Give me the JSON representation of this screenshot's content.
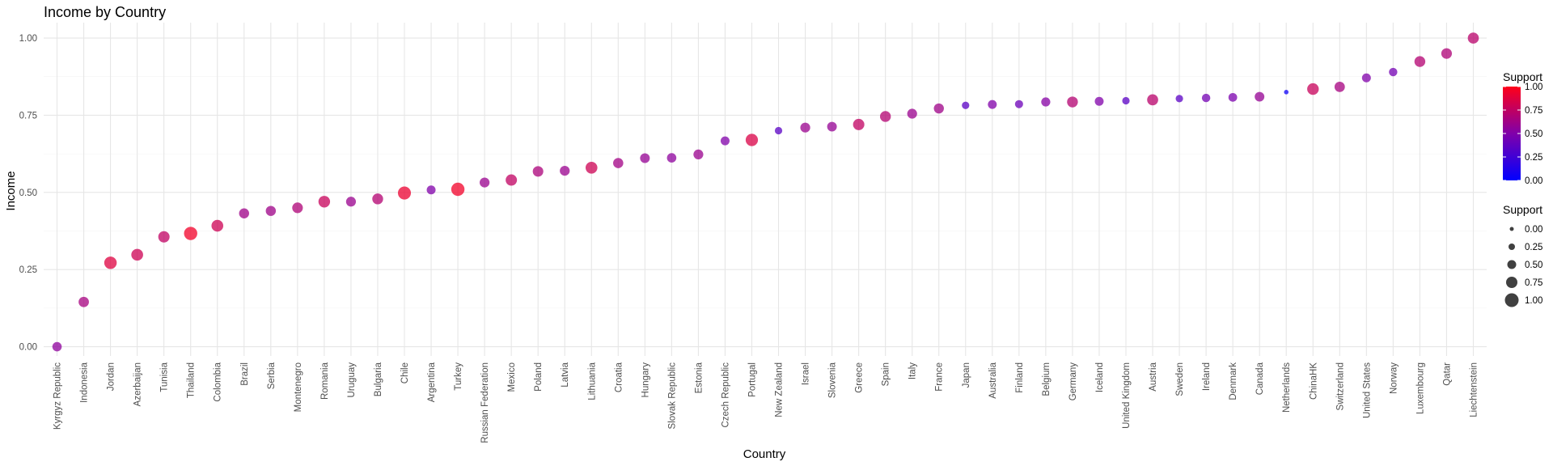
{
  "chart_data": {
    "type": "scatter",
    "title": "Income by Country",
    "xlabel": "Country",
    "ylabel": "Income",
    "ylim": [
      -0.03,
      1.05
    ],
    "y_ticks": [
      "0.00",
      "0.25",
      "0.50",
      "0.75",
      "1.00"
    ],
    "grid": true,
    "legend_placement": "right",
    "color_scale": {
      "low": "#0000ff",
      "high": "#ff0000",
      "range": [
        0,
        1
      ]
    },
    "legends": [
      {
        "title": "Support",
        "kind": "color",
        "labels": [
          "1.00",
          "0.75",
          "0.50",
          "0.25",
          "0.00"
        ]
      },
      {
        "title": "Support",
        "kind": "size",
        "labels": [
          "0.00",
          "0.25",
          "0.50",
          "0.75",
          "1.00"
        ]
      }
    ],
    "points": [
      {
        "country": "Kyrgyz Republic",
        "income": 0.0,
        "support": 0.55
      },
      {
        "country": "Indonesia",
        "income": 0.145,
        "support": 0.65
      },
      {
        "country": "Jordan",
        "income": 0.272,
        "support": 0.87
      },
      {
        "country": "Azerbaijan",
        "income": 0.298,
        "support": 0.8
      },
      {
        "country": "Tunisia",
        "income": 0.356,
        "support": 0.75
      },
      {
        "country": "Thailand",
        "income": 0.367,
        "support": 0.95
      },
      {
        "country": "Colombia",
        "income": 0.392,
        "support": 0.8
      },
      {
        "country": "Brazil",
        "income": 0.432,
        "support": 0.62
      },
      {
        "country": "Serbia",
        "income": 0.44,
        "support": 0.62
      },
      {
        "country": "Montenegro",
        "income": 0.45,
        "support": 0.68
      },
      {
        "country": "Romania",
        "income": 0.47,
        "support": 0.78
      },
      {
        "country": "Uruguay",
        "income": 0.47,
        "support": 0.6
      },
      {
        "country": "Bulgaria",
        "income": 0.479,
        "support": 0.7
      },
      {
        "country": "Chile",
        "income": 0.498,
        "support": 0.92
      },
      {
        "country": "Argentina",
        "income": 0.508,
        "support": 0.5
      },
      {
        "country": "Turkey",
        "income": 0.51,
        "support": 0.95
      },
      {
        "country": "Russian Federation",
        "income": 0.532,
        "support": 0.6
      },
      {
        "country": "Mexico",
        "income": 0.54,
        "support": 0.75
      },
      {
        "country": "Poland",
        "income": 0.568,
        "support": 0.67
      },
      {
        "country": "Latvia",
        "income": 0.57,
        "support": 0.6
      },
      {
        "country": "Lithuania",
        "income": 0.58,
        "support": 0.8
      },
      {
        "country": "Croatia",
        "income": 0.595,
        "support": 0.63
      },
      {
        "country": "Hungary",
        "income": 0.611,
        "support": 0.58
      },
      {
        "country": "Slovak Republic",
        "income": 0.612,
        "support": 0.55
      },
      {
        "country": "Estonia",
        "income": 0.623,
        "support": 0.6
      },
      {
        "country": "Czech Republic",
        "income": 0.667,
        "support": 0.5
      },
      {
        "country": "Portugal",
        "income": 0.67,
        "support": 0.85
      },
      {
        "country": "New Zealand",
        "income": 0.7,
        "support": 0.35
      },
      {
        "country": "Israel",
        "income": 0.71,
        "support": 0.6
      },
      {
        "country": "Slovenia",
        "income": 0.713,
        "support": 0.58
      },
      {
        "country": "Greece",
        "income": 0.72,
        "support": 0.75
      },
      {
        "country": "Spain",
        "income": 0.746,
        "support": 0.7
      },
      {
        "country": "Italy",
        "income": 0.755,
        "support": 0.6
      },
      {
        "country": "France",
        "income": 0.772,
        "support": 0.62
      },
      {
        "country": "Japan",
        "income": 0.782,
        "support": 0.35
      },
      {
        "country": "Australia",
        "income": 0.785,
        "support": 0.5
      },
      {
        "country": "Finland",
        "income": 0.786,
        "support": 0.42
      },
      {
        "country": "Belgium",
        "income": 0.793,
        "support": 0.52
      },
      {
        "country": "Germany",
        "income": 0.793,
        "support": 0.7
      },
      {
        "country": "Iceland",
        "income": 0.795,
        "support": 0.5
      },
      {
        "country": "United Kingdom",
        "income": 0.797,
        "support": 0.35
      },
      {
        "country": "Austria",
        "income": 0.8,
        "support": 0.72
      },
      {
        "country": "Sweden",
        "income": 0.804,
        "support": 0.35
      },
      {
        "country": "Ireland",
        "income": 0.806,
        "support": 0.45
      },
      {
        "country": "Denmark",
        "income": 0.808,
        "support": 0.48
      },
      {
        "country": "Canada",
        "income": 0.81,
        "support": 0.58
      },
      {
        "country": "Netherlands",
        "income": 0.825,
        "support": 0.05
      },
      {
        "country": "ChinaHK",
        "income": 0.835,
        "support": 0.78
      },
      {
        "country": "Switzerland",
        "income": 0.842,
        "support": 0.65
      },
      {
        "country": "United States",
        "income": 0.871,
        "support": 0.5
      },
      {
        "country": "Norway",
        "income": 0.89,
        "support": 0.45
      },
      {
        "country": "Luxembourg",
        "income": 0.924,
        "support": 0.7
      },
      {
        "country": "Qatar",
        "income": 0.95,
        "support": 0.68
      },
      {
        "country": "Liechtenstein",
        "income": 1.0,
        "support": 0.72
      }
    ]
  }
}
